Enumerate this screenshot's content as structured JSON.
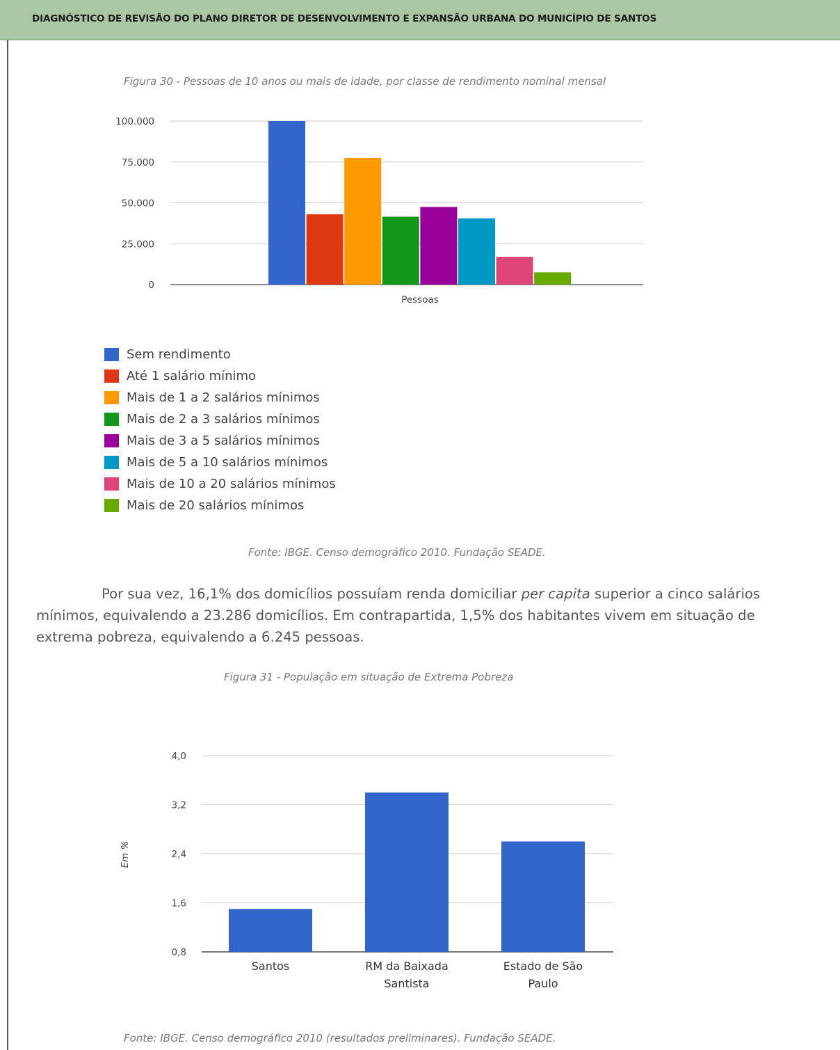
{
  "header": {
    "title": "DIAGNÓSTICO DE REVISÃO DO PLANO DIRETOR DE DESENVOLVIMENTO E EXPANSÃO URBANA DO MUNICÍPIO DE SANTOS"
  },
  "figure30": {
    "caption": "Figura 30 - Pessoas de 10 anos ou mais de idade, por classe de rendimento nominal mensal",
    "source": "Fonte: IBGE. Censo demográfico 2010. Fundação SEADE."
  },
  "paragraph": {
    "part1": "Por sua vez, 16,1% dos domicílios possuíam renda domiciliar ",
    "emphasis": "per capita",
    "part2": " superior a cinco salários mínimos, equivalendo a 23.286 domicílios. Em contrapartida, 1,5% dos habitantes vivem em situação de extrema pobreza, equivalendo a 6.245 pessoas."
  },
  "figure31": {
    "caption": "Figura 31 - População em situação de Extrema Pobreza",
    "source": "Fonte: IBGE. Censo demográfico 2010 (resultados preliminares). Fundação SEADE."
  },
  "chart_data": [
    {
      "type": "bar",
      "categories": [
        "Pessoas"
      ],
      "xlabel": "Pessoas",
      "ylabel": "",
      "ylim": [
        0,
        100000
      ],
      "yticks": [
        "100.000",
        "75.000",
        "50.000",
        "25.000",
        "0"
      ],
      "ytick_values": [
        100000,
        75000,
        50000,
        25000,
        0
      ],
      "grid": true,
      "legend_position": "bottom-left",
      "series": [
        {
          "name": "Sem rendimento",
          "values": [
            100000
          ],
          "color": "#3366cc"
        },
        {
          "name": "Até 1 salário mínimo",
          "values": [
            43000
          ],
          "color": "#dc3912"
        },
        {
          "name": "Mais de 1 a 2 salários mínimos",
          "values": [
            77500
          ],
          "color": "#ff9900"
        },
        {
          "name": "Mais de 2 a 3 salários mínimos",
          "values": [
            41500
          ],
          "color": "#109618"
        },
        {
          "name": "Mais de 3 a 5 salários mínimos",
          "values": [
            47500
          ],
          "color": "#990099"
        },
        {
          "name": "Mais de 5 a 10 salários mínimos",
          "values": [
            40500
          ],
          "color": "#0099c6"
        },
        {
          "name": "Mais de 10 a 20 salários mínimos",
          "values": [
            17000
          ],
          "color": "#dd4477"
        },
        {
          "name": "Mais de 20 salários mínimos",
          "values": [
            7500
          ],
          "color": "#66aa00"
        }
      ]
    },
    {
      "type": "bar",
      "categories": [
        [
          "Santos"
        ],
        [
          "RM da Baixada",
          "Santista"
        ],
        [
          "Estado de São",
          "Paulo"
        ]
      ],
      "values": [
        1.5,
        3.4,
        2.6
      ],
      "ylabel": "Em %",
      "ylim": [
        0.8,
        4.0
      ],
      "yticks": [
        "4,0",
        "3,2",
        "2,4",
        "1,6",
        "0,8"
      ],
      "ytick_values": [
        4.0,
        3.2,
        2.4,
        1.6,
        0.8
      ],
      "grid": true,
      "color": "#3366cc"
    }
  ]
}
